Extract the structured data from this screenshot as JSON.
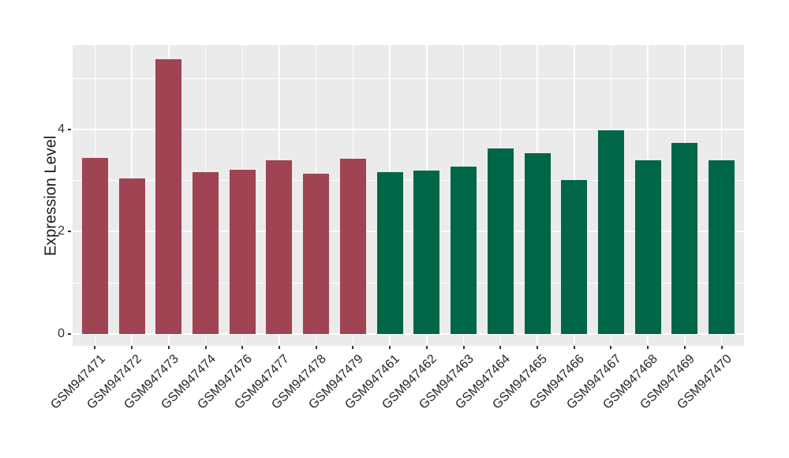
{
  "figure": {
    "background_color": "#FFFFFF",
    "panel_background_color": "#EBEBEB",
    "grid_color": "#FFFFFF",
    "tick_mark_color": "#333333",
    "axis_text_color": "#262626"
  },
  "chart_data": {
    "type": "bar",
    "title": "",
    "xlabel": "",
    "ylabel": "Expression Level",
    "categories": [
      "GSM947471",
      "GSM947472",
      "GSM947473",
      "GSM947474",
      "GSM947476",
      "GSM947477",
      "GSM947478",
      "GSM947479",
      "GSM947461",
      "GSM947462",
      "GSM947463",
      "GSM947464",
      "GSM947465",
      "GSM947466",
      "GSM947467",
      "GSM947468",
      "GSM947469",
      "GSM947470"
    ],
    "values": [
      3.44,
      3.04,
      5.38,
      3.16,
      3.21,
      3.4,
      3.14,
      3.42,
      3.16,
      3.19,
      3.28,
      3.63,
      3.54,
      3.01,
      3.98,
      3.4,
      3.74,
      3.4
    ],
    "bar_colors": [
      "#A04352",
      "#A04352",
      "#A04352",
      "#A04352",
      "#A04352",
      "#A04352",
      "#A04352",
      "#A04352",
      "#006648",
      "#006648",
      "#006648",
      "#006648",
      "#006648",
      "#006648",
      "#006648",
      "#006648",
      "#006648",
      "#006648"
    ],
    "groups": [
      {
        "color": "#A04352",
        "count": 8
      },
      {
        "color": "#006648",
        "count": 10
      }
    ],
    "yticks": [
      0,
      2,
      4
    ],
    "yticks_minor": [
      1,
      3,
      5
    ],
    "ylim": [
      0,
      5.65
    ],
    "grid": true,
    "legend_position": "none",
    "x_label_rotation_deg": 45
  }
}
